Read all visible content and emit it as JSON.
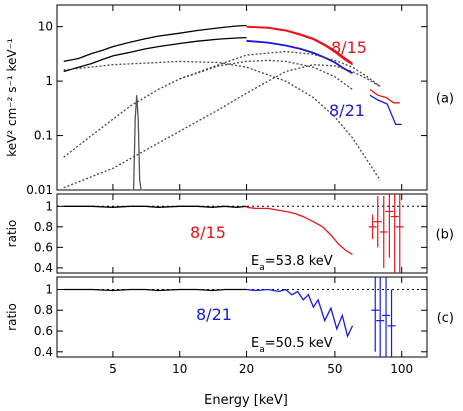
{
  "chart_data": {
    "type": "line",
    "xlabel": "Energy [keV]",
    "xscale": "log",
    "xlim": [
      2.8,
      130
    ],
    "xticks": [
      {
        "value": 5,
        "label": "5"
      },
      {
        "value": 10,
        "label": "10"
      },
      {
        "value": 20,
        "label": "20"
      },
      {
        "value": 50,
        "label": "50"
      },
      {
        "value": 100,
        "label": "100"
      }
    ],
    "colors": {
      "segment_8_15": "#e8141b",
      "segment_8_21": "#1a1adc",
      "low_energy": "#000000",
      "gaussian": "#555555",
      "components": "#444444",
      "reference": "#000000"
    },
    "panels": [
      {
        "id": "a",
        "label": "(a)",
        "ylabel": "keV² cm⁻² s⁻¹ keV⁻¹",
        "yscale": "log",
        "ylim": [
          0.01,
          25
        ],
        "yticks": [
          {
            "value": 0.01,
            "label": "0.01"
          },
          {
            "value": 0.1,
            "label": "0.1"
          },
          {
            "value": 1,
            "label": "1"
          },
          {
            "value": 10,
            "label": "10"
          }
        ],
        "annotations": [
          {
            "text": "8/15",
            "x": 32,
            "y": 9.5,
            "color": "#e8141b"
          },
          {
            "text": "8/21",
            "x": 39,
            "y": 0.85,
            "color": "#1a1adc"
          }
        ],
        "series": [
          {
            "role": "data",
            "color": "#000000",
            "x": [
              3.0,
              3.5,
              4.0,
              4.5,
              5.0,
              6.0,
              7.0,
              8.0,
              10.0,
              12.0,
              15.0,
              18.0,
              20.0
            ],
            "y": [
              2.3,
              2.6,
              3.2,
              3.7,
              4.3,
              5.2,
              6.0,
              6.7,
              7.6,
              8.5,
              9.5,
              10.3,
              10.5
            ]
          },
          {
            "role": "data",
            "color": "#000000",
            "x": [
              3.0,
              3.5,
              4.0,
              4.5,
              5.0,
              6.0,
              7.0,
              8.0,
              10.0,
              12.0,
              15.0,
              18.0,
              20.0
            ],
            "y": [
              1.5,
              1.8,
              2.1,
              2.5,
              2.9,
              3.4,
              3.9,
              4.3,
              4.9,
              5.4,
              5.9,
              6.2,
              6.3
            ]
          },
          {
            "role": "data",
            "color": "#e8141b",
            "x": [
              20,
              25,
              30,
              35,
              40,
              45,
              50,
              55,
              60
            ],
            "y": [
              9.9,
              9.4,
              8.4,
              7.0,
              5.8,
              4.5,
              3.4,
              2.5,
              2.0
            ]
          },
          {
            "role": "data",
            "color": "#1a1adc",
            "x": [
              20,
              25,
              30,
              35,
              40,
              45,
              50,
              55,
              60
            ],
            "y": [
              5.4,
              5.1,
              4.5,
              3.9,
              3.3,
              2.7,
              2.2,
              1.7,
              1.4
            ]
          },
          {
            "role": "data",
            "color": "#e8141b",
            "x": [
              72,
              78,
              85,
              92,
              98
            ],
            "y": [
              0.7,
              0.55,
              0.5,
              0.4,
              0.4
            ]
          },
          {
            "role": "data",
            "color": "#1a1adc",
            "x": [
              72,
              78,
              86,
              94,
              100
            ],
            "y": [
              0.55,
              0.45,
              0.38,
              0.16,
              0.16
            ]
          },
          {
            "role": "model",
            "color": "#e8141b",
            "x": [
              20,
              25,
              30,
              35,
              40,
              45,
              50,
              55,
              60
            ],
            "y": [
              10.0,
              9.6,
              8.6,
              7.2,
              6.0,
              4.7,
              3.6,
              2.7,
              2.1
            ]
          },
          {
            "role": "model",
            "color": "#1a1adc",
            "x": [
              20,
              25,
              30,
              35,
              40,
              45,
              50,
              55,
              60
            ],
            "y": [
              5.5,
              5.1,
              4.5,
              3.9,
              3.3,
              2.7,
              2.2,
              1.7,
              1.4
            ]
          },
          {
            "role": "gaussian",
            "color": "#555555",
            "x": [
              6.0,
              6.2,
              6.3,
              6.4,
              6.5,
              6.6,
              6.7,
              6.9
            ],
            "y": [
              0.01,
              0.01,
              0.2,
              0.55,
              0.2,
              0.015,
              0.01,
              0.01
            ]
          },
          {
            "role": "component",
            "color": "#444444",
            "x": [
              3,
              4,
              5,
              6,
              8,
              10,
              15,
              20,
              25,
              30,
              40,
              50,
              60
            ],
            "y": [
              0.04,
              0.1,
              0.2,
              0.35,
              0.7,
              1.1,
              1.9,
              2.3,
              2.4,
              2.3,
              1.8,
              1.2,
              0.7
            ]
          },
          {
            "role": "component",
            "color": "#444444",
            "x": [
              3,
              5,
              10,
              15,
              20,
              25,
              30,
              40,
              50,
              60,
              70,
              80
            ],
            "y": [
              0.011,
              0.025,
              0.12,
              0.3,
              0.6,
              1.0,
              1.5,
              2.0,
              1.9,
              1.5,
              1.1,
              0.8
            ]
          },
          {
            "role": "component",
            "color": "#444444",
            "x": [
              3,
              5,
              8,
              10,
              15,
              20,
              30,
              40,
              50,
              60,
              70,
              80
            ],
            "y": [
              1.6,
              2.0,
              2.2,
              2.3,
              2.2,
              1.8,
              1.0,
              0.5,
              0.22,
              0.09,
              0.035,
              0.015
            ]
          },
          {
            "role": "component",
            "color": "#444444",
            "x": [
              10,
              15,
              20,
              30,
              40,
              50,
              60,
              70,
              80
            ],
            "y": [
              1.1,
              2.0,
              3.0,
              3.5,
              3.1,
              2.4,
              1.8,
              1.2,
              0.8
            ]
          }
        ]
      },
      {
        "id": "b",
        "label": "(b)",
        "ylabel": "ratio",
        "yscale": "linear",
        "ylim": [
          0.35,
          1.12
        ],
        "yticks": [
          {
            "value": 0.4,
            "label": "0.4"
          },
          {
            "value": 0.6,
            "label": "0.6"
          },
          {
            "value": 0.8,
            "label": "0.8"
          },
          {
            "value": 1.0,
            "label": "1"
          }
        ],
        "reference_y": 1.0,
        "annotations": [
          {
            "text": "8/15",
            "color": "#e8141b"
          },
          {
            "text": "E",
            "sub": "a",
            "value": "=53.8 keV",
            "color": "#000000"
          }
        ],
        "series": [
          {
            "role": "data",
            "color": "#000000",
            "x": [
              3.0,
              4.0,
              5.0,
              6.0,
              7.0,
              8.0,
              10.0,
              12.0,
              14.0,
              16.0,
              18.0,
              20.0
            ],
            "y": [
              1.0,
              1.0,
              0.99,
              1.0,
              1.0,
              0.99,
              1.0,
              1.0,
              0.99,
              1.0,
              0.99,
              1.0
            ]
          },
          {
            "role": "data",
            "color": "#e8141b",
            "x": [
              20,
              22,
              25,
              28,
              30,
              33,
              36,
              40,
              44,
              48,
              52,
              56,
              60
            ],
            "y": [
              0.99,
              0.98,
              0.98,
              0.96,
              0.95,
              0.93,
              0.9,
              0.85,
              0.8,
              0.72,
              0.63,
              0.57,
              0.53
            ]
          },
          {
            "role": "errors",
            "color": "#e8141b",
            "x": [
              74,
              78,
              83,
              88,
              93,
              98
            ],
            "y": [
              0.8,
              0.85,
              0.75,
              0.95,
              0.9,
              0.8
            ],
            "err": [
              0.12,
              0.25,
              0.35,
              0.45,
              0.55,
              0.5
            ]
          }
        ]
      },
      {
        "id": "c",
        "label": "(c)",
        "ylabel": "ratio",
        "yscale": "linear",
        "ylim": [
          0.35,
          1.12
        ],
        "yticks": [
          {
            "value": 0.4,
            "label": "0.4"
          },
          {
            "value": 0.6,
            "label": "0.6"
          },
          {
            "value": 0.8,
            "label": "0.8"
          },
          {
            "value": 1.0,
            "label": "1"
          }
        ],
        "reference_y": 1.0,
        "annotations": [
          {
            "text": "8/21",
            "color": "#1a1adc"
          },
          {
            "text": "E",
            "sub": "a",
            "value": "=50.5 keV",
            "color": "#000000"
          }
        ],
        "series": [
          {
            "role": "data",
            "color": "#000000",
            "x": [
              3.0,
              4.0,
              5.0,
              6.0,
              7.0,
              8.0,
              10.0,
              12.0,
              14.0,
              16.0,
              18.0,
              20.0
            ],
            "y": [
              1.0,
              1.0,
              0.99,
              1.0,
              1.0,
              0.99,
              1.0,
              1.0,
              0.99,
              1.0,
              1.0,
              1.0
            ]
          },
          {
            "role": "data",
            "color": "#1a1adc",
            "x": [
              20,
              22,
              25,
              28,
              30,
              32,
              34,
              36,
              38,
              40,
              42,
              45,
              48,
              51,
              54,
              57,
              60
            ],
            "y": [
              1.0,
              0.99,
              1.0,
              0.98,
              1.0,
              0.95,
              0.98,
              0.9,
              0.95,
              0.83,
              0.9,
              0.7,
              0.82,
              0.62,
              0.75,
              0.55,
              0.65
            ]
          },
          {
            "role": "errors",
            "color": "#1a1adc",
            "x": [
              76,
              80,
              85,
              90
            ],
            "y": [
              0.8,
              0.7,
              0.75,
              0.65
            ],
            "err": [
              0.4,
              0.45,
              0.5,
              0.35
            ]
          }
        ]
      }
    ]
  }
}
